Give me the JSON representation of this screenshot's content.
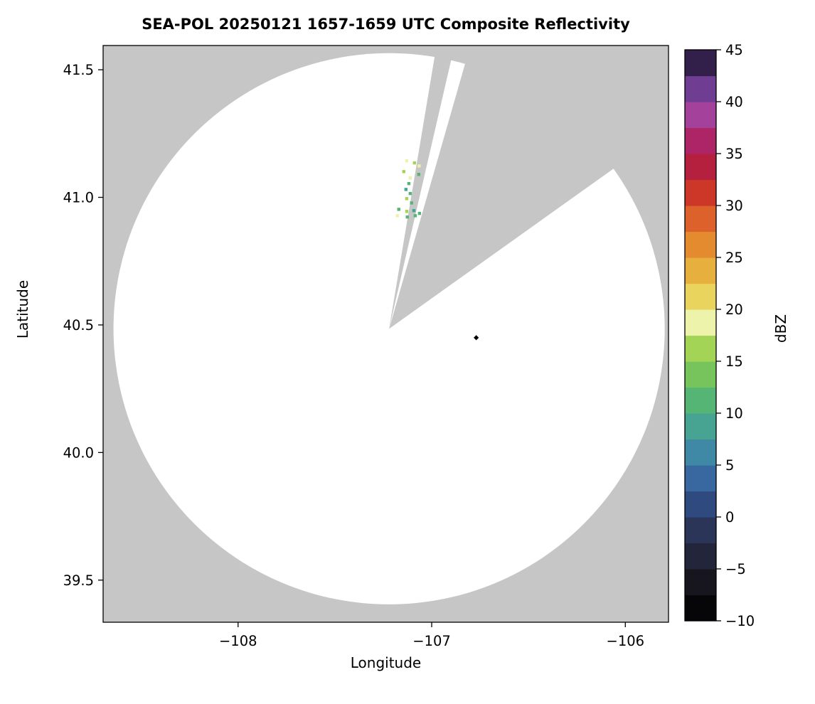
{
  "chart": {
    "title": "SEA-POL 20250121 1657-1659 UTC Composite Reflectivity",
    "xlabel": "Longitude",
    "ylabel": "Latitude",
    "colorbar_label": "dBZ"
  },
  "chart_data": {
    "type": "heatmap",
    "title": "SEA-POL 20250121 1657-1659 UTC Composite Reflectivity",
    "xlabel": "Longitude",
    "ylabel": "Latitude",
    "xlim": [
      -108.697,
      -105.777
    ],
    "ylim": [
      39.335,
      41.595
    ],
    "x_ticks": [
      -108,
      -107,
      -106
    ],
    "x_tick_labels": [
      "−108",
      "−107",
      "−106"
    ],
    "y_ticks": [
      39.5,
      40.0,
      40.5,
      41.0,
      41.5
    ],
    "y_tick_labels": [
      "39.5",
      "40.0",
      "40.5",
      "41.0",
      "41.5"
    ],
    "grid": false,
    "legend": "none",
    "colorbar": {
      "label": "dBZ",
      "position": "right",
      "min": -10,
      "max": 45,
      "ticks": [
        -10,
        -5,
        0,
        5,
        10,
        15,
        20,
        25,
        30,
        35,
        40,
        45
      ],
      "tick_labels": [
        "−10",
        "−5",
        "0",
        "5",
        "10",
        "15",
        "20",
        "25",
        "30",
        "35",
        "40",
        "45"
      ],
      "band_step": 2.5,
      "band_colors": [
        "#060608",
        "#17161f",
        "#23253b",
        "#2b3558",
        "#2f4a7e",
        "#38689f",
        "#3f88a6",
        "#47a392",
        "#55b574",
        "#78c45c",
        "#a3d456",
        "#eef3ab",
        "#e9d45e",
        "#e7af3d",
        "#e48a2f",
        "#dd612b",
        "#cc3727",
        "#b5203e",
        "#ad2566",
        "#a4419b",
        "#6f3d92",
        "#33204a"
      ]
    },
    "radar": {
      "center_lon": -107.22,
      "center_lat": 40.485,
      "range_deg_lat": 1.08,
      "blocked_sectors_deg": [
        [
          9.5,
          13.0
        ],
        [
          16.0,
          54.5
        ]
      ],
      "coverage_color": "#ffffff",
      "no_data_color": "#c6c6c6"
    },
    "echoes": [
      {
        "lon": -107.129,
        "lat": 41.143,
        "dbz": 18
      },
      {
        "lon": -107.089,
        "lat": 41.135,
        "dbz": 15
      },
      {
        "lon": -107.065,
        "lat": 41.123,
        "dbz": 18
      },
      {
        "lon": -107.144,
        "lat": 41.101,
        "dbz": 15
      },
      {
        "lon": -107.067,
        "lat": 41.09,
        "dbz": 12
      },
      {
        "lon": -107.111,
        "lat": 41.076,
        "dbz": 18
      },
      {
        "lon": -107.118,
        "lat": 41.054,
        "dbz": 12
      },
      {
        "lon": -107.133,
        "lat": 41.031,
        "dbz": 9
      },
      {
        "lon": -107.111,
        "lat": 41.015,
        "dbz": 12
      },
      {
        "lon": -107.129,
        "lat": 40.995,
        "dbz": 15
      },
      {
        "lon": -107.104,
        "lat": 40.978,
        "dbz": 12
      },
      {
        "lon": -107.17,
        "lat": 40.953,
        "dbz": 12
      },
      {
        "lon": -107.129,
        "lat": 40.945,
        "dbz": 15
      },
      {
        "lon": -107.092,
        "lat": 40.948,
        "dbz": 8
      },
      {
        "lon": -107.063,
        "lat": 40.937,
        "dbz": 12
      },
      {
        "lon": -107.177,
        "lat": 40.928,
        "dbz": 18
      },
      {
        "lon": -107.126,
        "lat": 40.923,
        "dbz": 12
      },
      {
        "lon": -107.085,
        "lat": 40.928,
        "dbz": 10
      }
    ],
    "site_marker": {
      "lon": -106.77,
      "lat": 40.45,
      "color": "#000000"
    }
  }
}
